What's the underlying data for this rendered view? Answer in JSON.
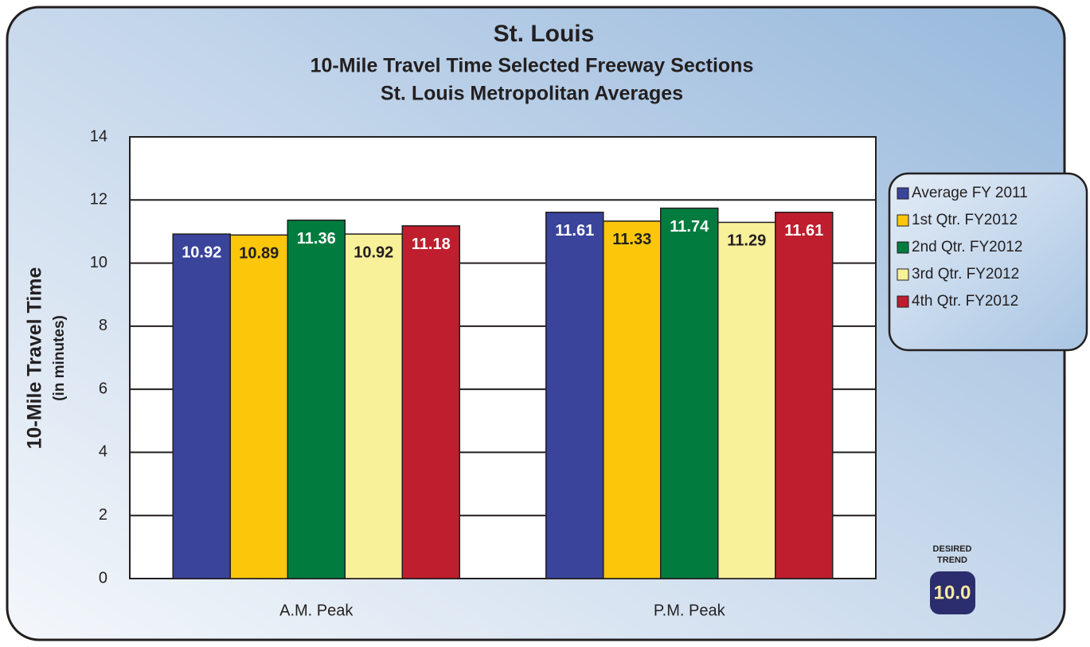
{
  "chart_data": {
    "type": "bar",
    "title": "St. Louis",
    "subtitle": [
      "10-Mile Travel Time Selected Freeway Sections",
      "St. Louis Metropolitan Averages"
    ],
    "ylabel": "10-Mile Travel Time",
    "ylabel_sub": "(in minutes)",
    "categories": [
      "A.M. Peak",
      "P.M. Peak"
    ],
    "series": [
      {
        "name": "Average FY 2011",
        "color": "#3a449b",
        "label_color": "#ffffff",
        "values": [
          10.92,
          11.61
        ]
      },
      {
        "name": "1st Qtr. FY2012",
        "color": "#fcc70b",
        "label_color": "#231f20",
        "values": [
          10.89,
          11.33
        ]
      },
      {
        "name": "2nd Qtr. FY2012",
        "color": "#027c3e",
        "label_color": "#ffffff",
        "values": [
          11.36,
          11.74
        ]
      },
      {
        "name": "3rd Qtr. FY2012",
        "color": "#f9f19a",
        "label_color": "#231f20",
        "values": [
          10.92,
          11.29
        ]
      },
      {
        "name": "4th Qtr. FY2012",
        "color": "#be1e2d",
        "label_color": "#ffffff",
        "values": [
          11.18,
          11.61
        ]
      }
    ],
    "ylim": [
      0,
      14
    ],
    "yticks": [
      0,
      2,
      4,
      6,
      8,
      10,
      12,
      14
    ],
    "grid": true,
    "legend": "right",
    "desired_trend": {
      "label": [
        "DESIRED",
        "TREND"
      ],
      "value": "10.0"
    }
  }
}
